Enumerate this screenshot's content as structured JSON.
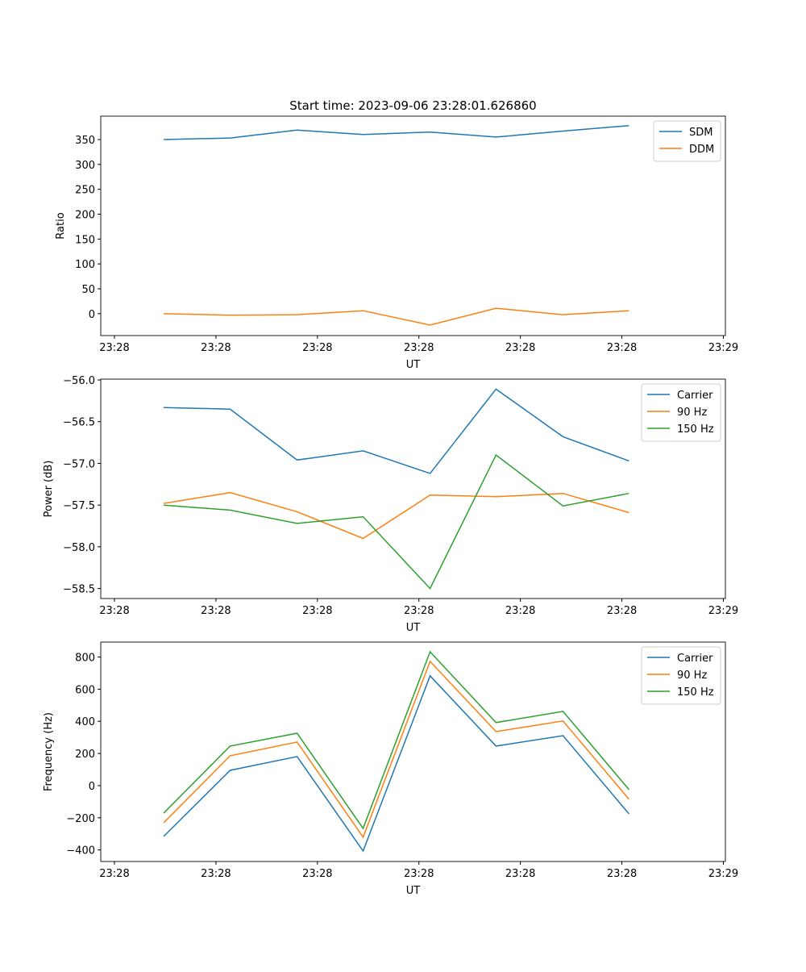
{
  "chart_data": [
    {
      "type": "line",
      "title": "Start time: 2023-09-06 23:28:01.626860",
      "xlabel": "UT",
      "ylabel": "Ratio",
      "x": [
        4.85,
        11.4,
        18.0,
        24.5,
        31.1,
        37.6,
        44.2,
        50.7
      ],
      "xlim": [
        -1.35,
        60.2
      ],
      "xticks": [
        0,
        10,
        20,
        30,
        40,
        50,
        60
      ],
      "xtick_labels": [
        "23:28",
        "23:28",
        "23:28",
        "23:28",
        "23:28",
        "23:28",
        "23:29"
      ],
      "ylim": [
        -44,
        397
      ],
      "yticks": [
        0,
        50,
        100,
        150,
        200,
        250,
        300,
        350
      ],
      "ytick_labels": [
        "0",
        "50",
        "100",
        "150",
        "200",
        "250",
        "300",
        "350"
      ],
      "legend": "top-right",
      "series": [
        {
          "name": "SDM",
          "color": "#1f77b4",
          "values": [
            350,
            353,
            369,
            360,
            365,
            355,
            367,
            378
          ]
        },
        {
          "name": "DDM",
          "color": "#ff7f0e",
          "values": [
            0,
            -3,
            -2,
            6,
            -23,
            11,
            -2,
            6
          ]
        }
      ]
    },
    {
      "type": "line",
      "title": "",
      "xlabel": "UT",
      "ylabel": "Power (dB)",
      "x": [
        4.85,
        11.4,
        18.0,
        24.5,
        31.1,
        37.6,
        44.2,
        50.7
      ],
      "xlim": [
        -1.35,
        60.2
      ],
      "xticks": [
        0,
        10,
        20,
        30,
        40,
        50,
        60
      ],
      "xtick_labels": [
        "23:28",
        "23:28",
        "23:28",
        "23:28",
        "23:28",
        "23:28",
        "23:29"
      ],
      "ylim": [
        -58.62,
        -55.99
      ],
      "yticks": [
        -56.0,
        -56.5,
        -57.0,
        -57.5,
        -58.0,
        -58.5
      ],
      "ytick_labels": [
        "−56.0",
        "−56.5",
        "−57.0",
        "−57.5",
        "−58.0",
        "−58.5"
      ],
      "legend": "top-right",
      "series": [
        {
          "name": "Carrier",
          "color": "#1f77b4",
          "values": [
            -56.33,
            -56.35,
            -56.96,
            -56.85,
            -57.12,
            -56.11,
            -56.68,
            -56.97
          ]
        },
        {
          "name": "90 Hz",
          "color": "#ff7f0e",
          "values": [
            -57.48,
            -57.35,
            -57.58,
            -57.9,
            -57.38,
            -57.4,
            -57.36,
            -57.59
          ]
        },
        {
          "name": "150 Hz",
          "color": "#2ca02c",
          "values": [
            -57.5,
            -57.56,
            -57.72,
            -57.64,
            -58.5,
            -56.9,
            -57.51,
            -57.36
          ]
        }
      ]
    },
    {
      "type": "line",
      "title": "",
      "xlabel": "UT",
      "ylabel": "Frequency (Hz)",
      "x": [
        4.85,
        11.4,
        18.0,
        24.5,
        31.1,
        37.6,
        44.2,
        50.7
      ],
      "xlim": [
        -1.35,
        60.2
      ],
      "xticks": [
        0,
        10,
        20,
        30,
        40,
        50,
        60
      ],
      "xtick_labels": [
        "23:28",
        "23:28",
        "23:28",
        "23:28",
        "23:28",
        "23:28",
        "23:29"
      ],
      "ylim": [
        -472,
        893
      ],
      "yticks": [
        -400,
        -200,
        0,
        200,
        400,
        600,
        800
      ],
      "ytick_labels": [
        "−400",
        "−200",
        "0",
        "200",
        "400",
        "600",
        "800"
      ],
      "legend": "top-right",
      "series": [
        {
          "name": "Carrier",
          "color": "#1f77b4",
          "values": [
            -316,
            95,
            181,
            -407,
            683,
            246,
            311,
            -176
          ]
        },
        {
          "name": "90 Hz",
          "color": "#ff7f0e",
          "values": [
            -231,
            186,
            271,
            -321,
            773,
            336,
            402,
            -85
          ]
        },
        {
          "name": "150 Hz",
          "color": "#2ca02c",
          "values": [
            -171,
            246,
            326,
            -266,
            833,
            392,
            462,
            -25
          ]
        }
      ]
    }
  ]
}
